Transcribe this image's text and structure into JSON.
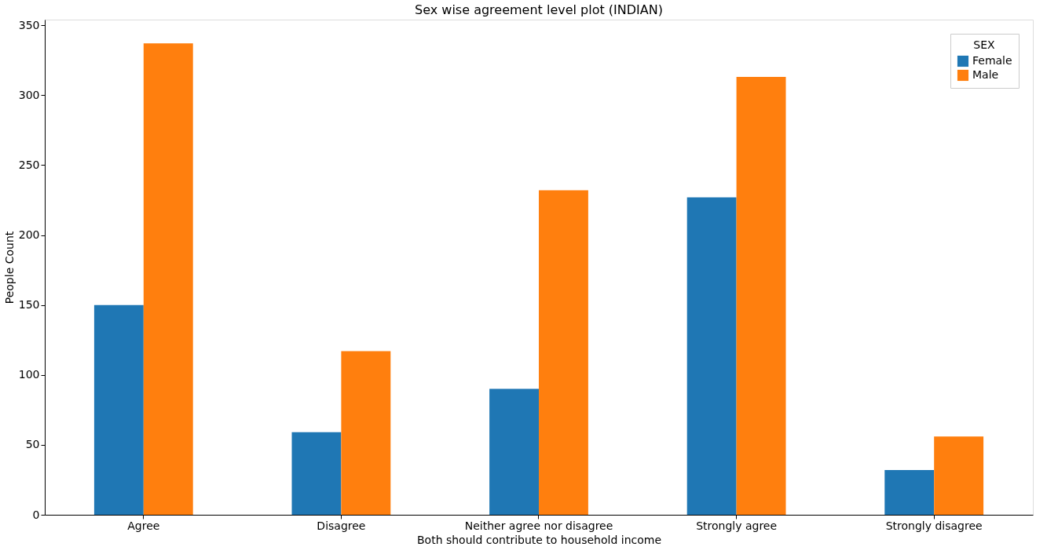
{
  "chart_data": {
    "type": "bar",
    "title": "Sex wise agreement level plot (INDIAN)",
    "xlabel": "Both should contribute to household income",
    "ylabel": "People Count",
    "legend_title": "SEX",
    "categories": [
      "Agree",
      "Disagree",
      "Neither agree nor disagree",
      "Strongly agree",
      "Strongly disagree"
    ],
    "series": [
      {
        "name": "Female",
        "color": "#1f77b4",
        "values": [
          150,
          59,
          90,
          227,
          32
        ]
      },
      {
        "name": "Male",
        "color": "#ff7f0e",
        "values": [
          337,
          117,
          232,
          313,
          56
        ]
      }
    ],
    "ylim": [
      0,
      354
    ],
    "yticks": [
      0,
      50,
      100,
      150,
      200,
      250,
      300,
      350
    ],
    "grid": false,
    "legend": "top right"
  }
}
